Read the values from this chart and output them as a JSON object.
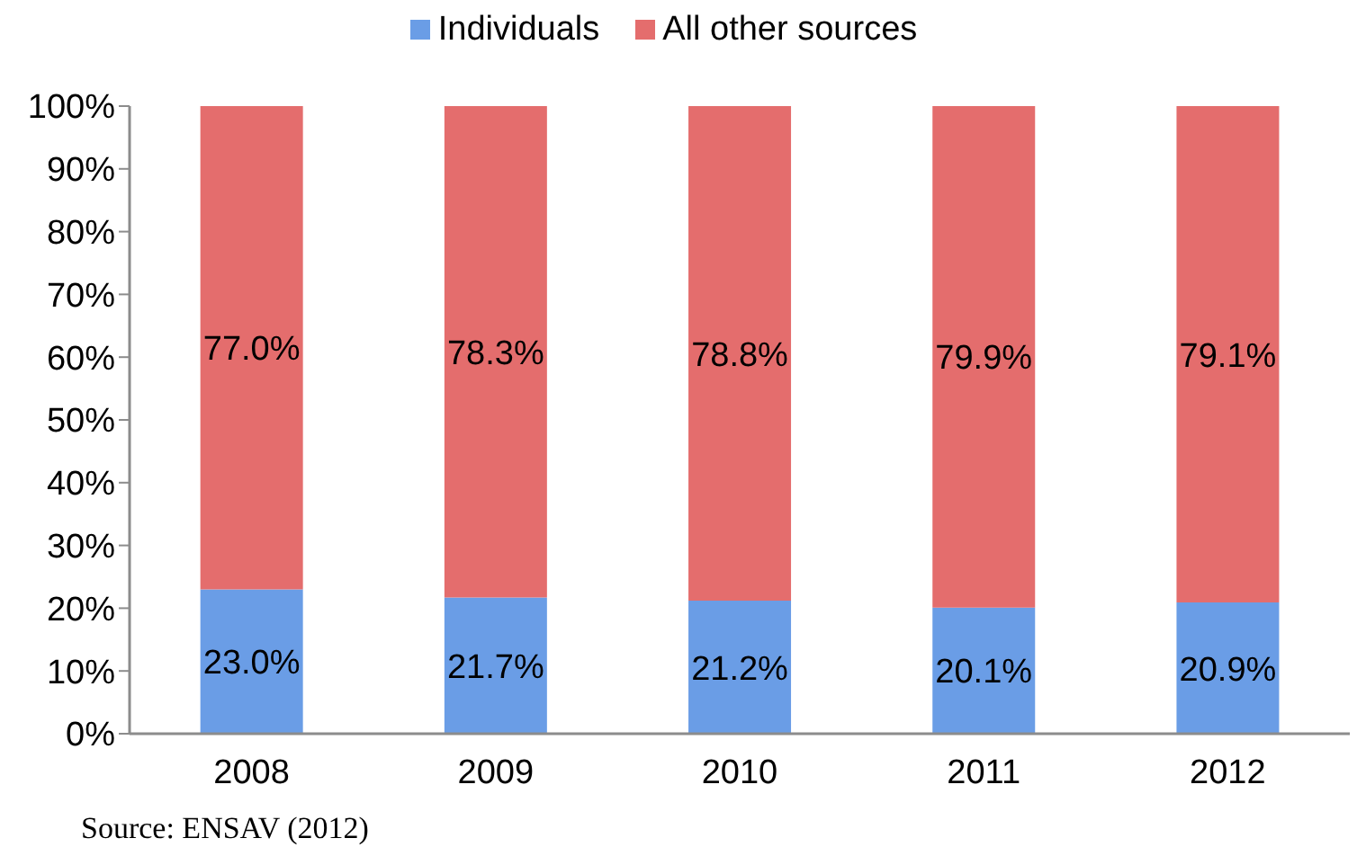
{
  "chart_data": {
    "type": "bar",
    "stacked": true,
    "categories": [
      "2008",
      "2009",
      "2010",
      "2011",
      "2012"
    ],
    "series": [
      {
        "name": "Individuals",
        "color": "#6a9de6",
        "values": [
          23.0,
          21.7,
          21.2,
          20.1,
          20.9
        ],
        "value_labels": [
          "23.0%",
          "21.7%",
          "21.2%",
          "20.1%",
          "20.9%"
        ]
      },
      {
        "name": "All other sources",
        "color": "#e46d6d",
        "values": [
          77.0,
          78.3,
          78.8,
          79.9,
          79.1
        ],
        "value_labels": [
          "77.0%",
          "78.3%",
          "78.8%",
          "79.9%",
          "79.1%"
        ]
      }
    ],
    "ylim": [
      0,
      100
    ],
    "yticks": [
      {
        "value": 0,
        "label": "0%"
      },
      {
        "value": 10,
        "label": "10%"
      },
      {
        "value": 20,
        "label": "20%"
      },
      {
        "value": 30,
        "label": "30%"
      },
      {
        "value": 40,
        "label": "40%"
      },
      {
        "value": 50,
        "label": "50%"
      },
      {
        "value": 60,
        "label": "60%"
      },
      {
        "value": 70,
        "label": "70%"
      },
      {
        "value": 80,
        "label": "80%"
      },
      {
        "value": 90,
        "label": "90%"
      },
      {
        "value": 100,
        "label": "100%"
      }
    ],
    "legend": "top",
    "annotations": [
      "Source: ENSAV (2012)"
    ]
  }
}
